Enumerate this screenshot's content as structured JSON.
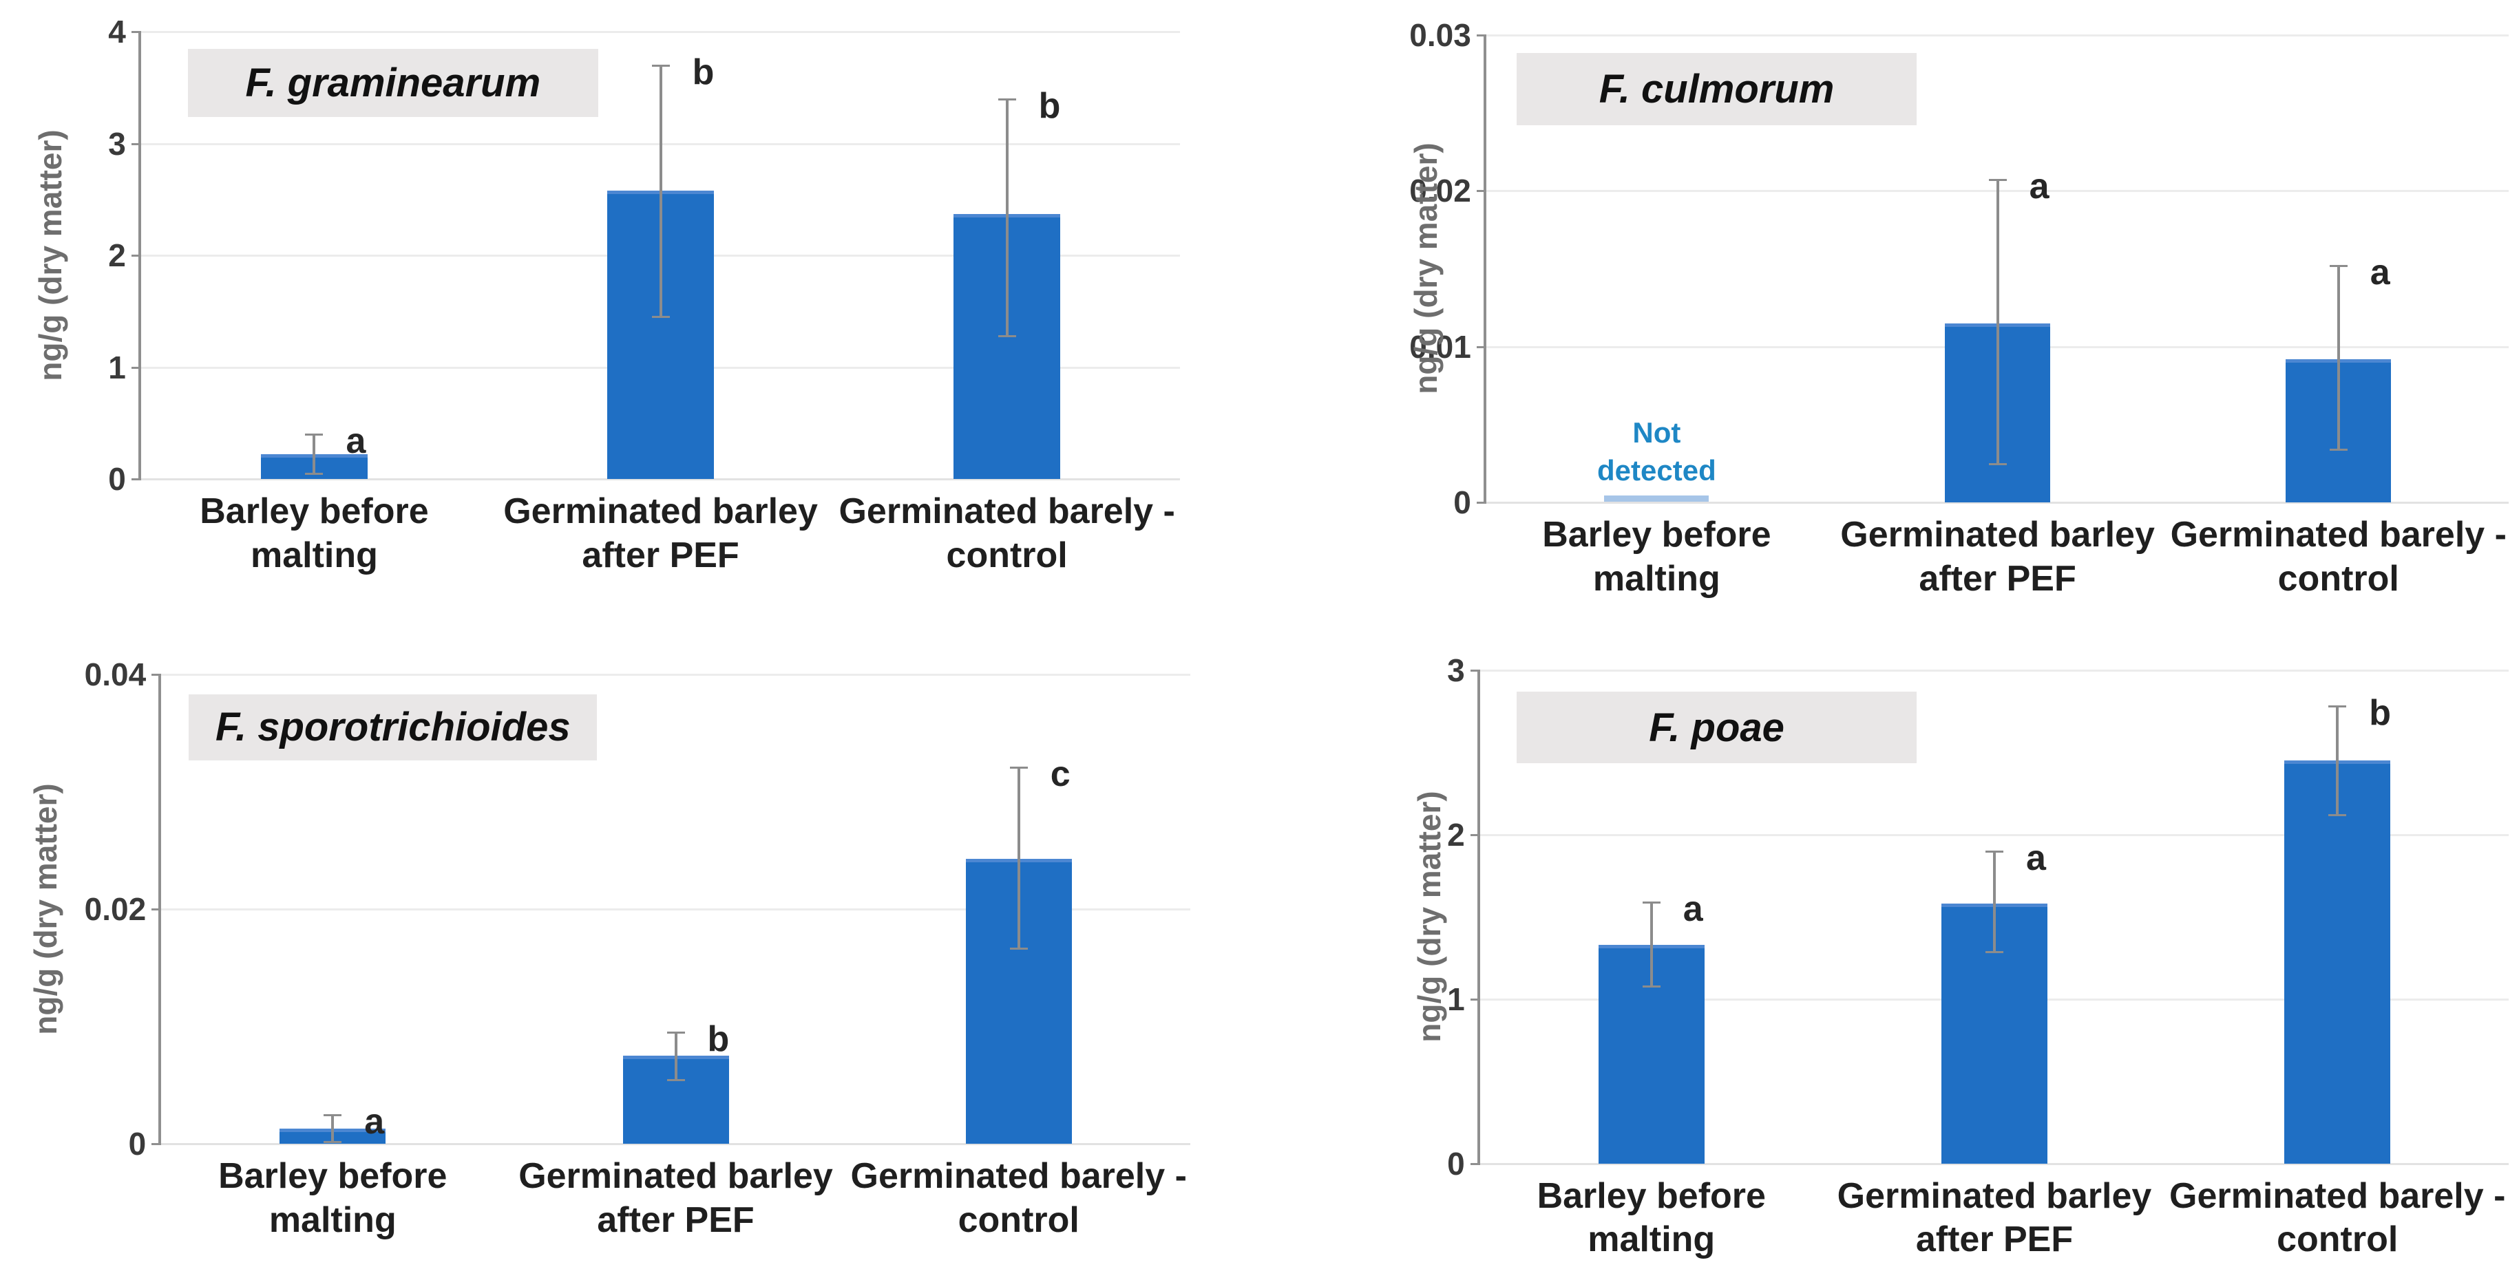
{
  "figure": {
    "description": "Four bar charts of Fusarium species DNA content in barley samples",
    "background": "#ffffff"
  },
  "colors": {
    "bar_fill": "#1f6fc4",
    "bar_top_edge": "#4c87d2",
    "error_bar": "#8c8c8c",
    "gridline": "#ececec",
    "baseline": "#e2e2e2",
    "axis_line": "#8f8f8f",
    "tick_label": "#3a3a3a",
    "axis_title": "#6e6e6e",
    "category_label": "#1f1f1f",
    "sig_letter": "#262626",
    "title_text": "#111111",
    "title_bg": "#e9e7e7",
    "not_detected_text": "#1e87c5",
    "not_detected_bar": "#a6c5e8"
  },
  "chart_data": [
    {
      "type": "bar",
      "title": "F. graminearum",
      "ylabel": "ng/g (dry matter)",
      "ylim": [
        0,
        4
      ],
      "ytick_values": [
        0,
        1,
        2,
        3,
        4
      ],
      "ytick_labels": [
        "0",
        "1",
        "2",
        "3",
        "4"
      ],
      "categories": [
        "Barley before\nmalting",
        "Germinated barley\nafter PEF",
        "Germinated barely -\ncontrol"
      ],
      "values": [
        0.22,
        2.58,
        2.37
      ],
      "errors_up": [
        0.18,
        1.12,
        1.03
      ],
      "errors_down": [
        0.17,
        1.13,
        1.09
      ],
      "letters": [
        "a",
        "b",
        "b"
      ],
      "not_detected": [
        false,
        false,
        false
      ],
      "grid": true,
      "legend": "none"
    },
    {
      "type": "bar",
      "title": "F. culmorum",
      "ylabel": "ng/g (dry matter)",
      "ylim": [
        0,
        0.03
      ],
      "ytick_values": [
        0,
        0.01,
        0.02,
        0.03
      ],
      "ytick_labels": [
        "0",
        "0.01",
        "0.02",
        "0.03"
      ],
      "categories": [
        "Barley before\nmalting",
        "Germinated barley\nafter PEF",
        "Germinated barely -\ncontrol"
      ],
      "values": [
        null,
        0.0115,
        0.0092
      ],
      "errors_up": [
        null,
        0.0092,
        0.006
      ],
      "errors_down": [
        null,
        0.009,
        0.0058
      ],
      "letters": [
        "",
        "a",
        "a"
      ],
      "not_detected": [
        true,
        false,
        false
      ],
      "not_detected_label": "Not\ndetected",
      "grid": true,
      "legend": "none"
    },
    {
      "type": "bar",
      "title": "F. sporotrichioides",
      "ylabel": "ng/g (dry matter)",
      "ylim": [
        0,
        0.04
      ],
      "ytick_values": [
        0,
        0.02,
        0.04
      ],
      "ytick_labels": [
        "0",
        "0.02",
        "0.04"
      ],
      "categories": [
        "Barley before\nmalting",
        "Germinated barley\nafter PEF",
        "Germinated barely -\ncontrol"
      ],
      "values": [
        0.0013,
        0.0075,
        0.0243
      ],
      "errors_up": [
        0.0012,
        0.002,
        0.0078
      ],
      "errors_down": [
        0.0011,
        0.002,
        0.0076
      ],
      "letters": [
        "a",
        "b",
        "c"
      ],
      "not_detected": [
        false,
        false,
        false
      ],
      "grid": true,
      "legend": "none"
    },
    {
      "type": "bar",
      "title": "F. poae",
      "ylabel": "ng/g (dry matter)",
      "ylim": [
        0,
        3
      ],
      "ytick_values": [
        0,
        1,
        2,
        3
      ],
      "ytick_labels": [
        "0",
        "1",
        "2",
        "3"
      ],
      "categories": [
        "Barley before\nmalting",
        "Germinated barley\nafter PEF",
        "Germinated barely -\ncontrol"
      ],
      "values": [
        1.33,
        1.58,
        2.45
      ],
      "errors_up": [
        0.26,
        0.32,
        0.33
      ],
      "errors_down": [
        0.25,
        0.29,
        0.33
      ],
      "letters": [
        "a",
        "a",
        "b"
      ],
      "not_detected": [
        false,
        false,
        false
      ],
      "grid": true,
      "legend": "none"
    }
  ]
}
